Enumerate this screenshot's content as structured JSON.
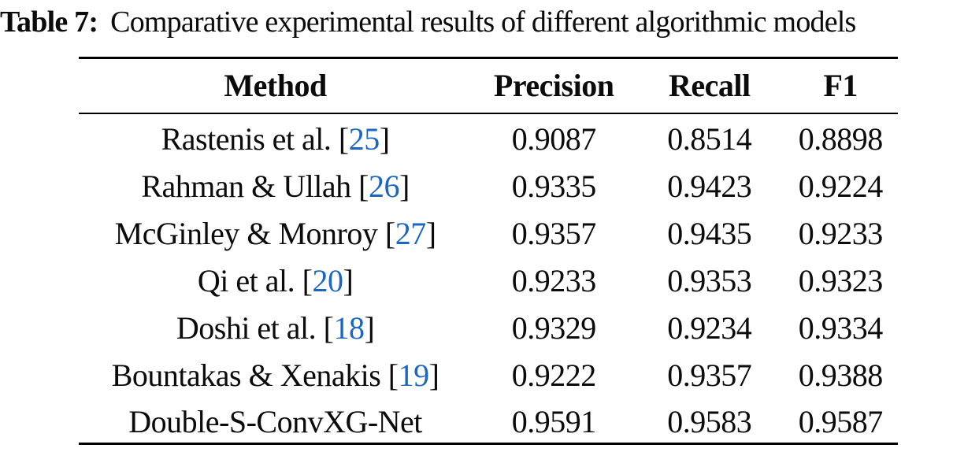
{
  "caption": {
    "label": "Table 7:",
    "text": "Comparative experimental results of different algorithmic models"
  },
  "table": {
    "columns": [
      "Method",
      "Precision",
      "Recall",
      "F1"
    ],
    "rows": [
      {
        "method": "Rastenis et al.",
        "citation": "25",
        "precision": "0.9087",
        "recall": "0.8514",
        "f1": "0.8898"
      },
      {
        "method": "Rahman & Ullah",
        "citation": "26",
        "precision": "0.9335",
        "recall": "0.9423",
        "f1": "0.9224"
      },
      {
        "method": "McGinley & Monroy",
        "citation": "27",
        "precision": "0.9357",
        "recall": "0.9435",
        "f1": "0.9233"
      },
      {
        "method": "Qi et al.",
        "citation": "20",
        "precision": "0.9233",
        "recall": "0.9353",
        "f1": "0.9323"
      },
      {
        "method": "Doshi et al.",
        "citation": "18",
        "precision": "0.9329",
        "recall": "0.9234",
        "f1": "0.9334"
      },
      {
        "method": "Bountakas & Xenakis",
        "citation": "19",
        "precision": "0.9222",
        "recall": "0.9357",
        "f1": "0.9388"
      },
      {
        "method": "Double-S-ConvXG-Net",
        "citation": null,
        "precision": "0.9591",
        "recall": "0.9583",
        "f1": "0.9587"
      }
    ]
  },
  "colors": {
    "text": "#0b0b0b",
    "citation_blue": "#1a66c2",
    "rule": "#000000"
  },
  "chart_data": {
    "type": "table",
    "title": "Table 7: Comparative experimental results of different algorithmic models",
    "columns": [
      "Method",
      "Precision",
      "Recall",
      "F1"
    ],
    "rows": [
      [
        "Rastenis et al. [25]",
        0.9087,
        0.8514,
        0.8898
      ],
      [
        "Rahman & Ullah [26]",
        0.9335,
        0.9423,
        0.9224
      ],
      [
        "McGinley & Monroy [27]",
        0.9357,
        0.9435,
        0.9233
      ],
      [
        "Qi et al. [20]",
        0.9233,
        0.9353,
        0.9323
      ],
      [
        "Doshi et al. [18]",
        0.9329,
        0.9234,
        0.9334
      ],
      [
        "Bountakas & Xenakis [19]",
        0.9222,
        0.9357,
        0.9388
      ],
      [
        "Double-S-ConvXG-Net",
        0.9591,
        0.9583,
        0.9587
      ]
    ]
  }
}
